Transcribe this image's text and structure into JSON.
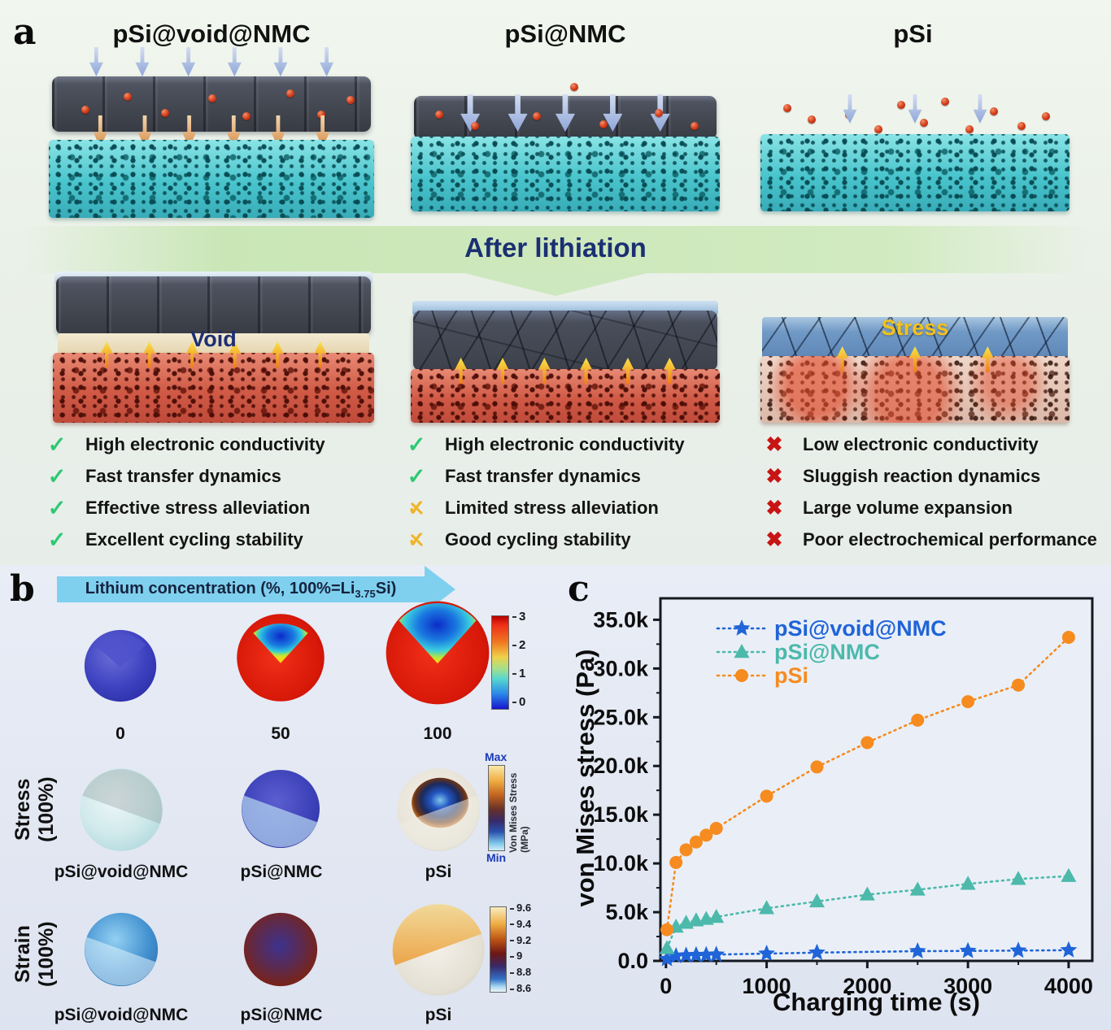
{
  "panel_a": {
    "label": "a",
    "after_lithiation": "After lithiation",
    "columns": [
      {
        "title": "pSi@void@NMC",
        "overlay_label": "Void",
        "items": [
          {
            "icon": "check",
            "text": "High electronic conductivity"
          },
          {
            "icon": "check",
            "text": "Fast transfer dynamics"
          },
          {
            "icon": "check",
            "text": "Effective stress alleviation"
          },
          {
            "icon": "check",
            "text": "Excellent cycling stability"
          }
        ]
      },
      {
        "title": "pSi@NMC",
        "overlay_label": "",
        "items": [
          {
            "icon": "check",
            "text": "High electronic conductivity"
          },
          {
            "icon": "check",
            "text": "Fast  transfer dynamics"
          },
          {
            "icon": "partial",
            "text": "Limited stress alleviation"
          },
          {
            "icon": "partial",
            "text": "Good cycling stability"
          }
        ]
      },
      {
        "title": "pSi",
        "overlay_label": "Stress",
        "items": [
          {
            "icon": "cross",
            "text": "Low electronic conductivity"
          },
          {
            "icon": "cross",
            "text": "Sluggish reaction dynamics"
          },
          {
            "icon": "cross",
            "text": "Large volume expansion"
          },
          {
            "icon": "cross",
            "text": "Poor electrochemical performance"
          }
        ]
      }
    ]
  },
  "panel_b": {
    "label": "b",
    "arrow_text_pre": "Lithium concentration (%, 100%=Li",
    "arrow_text_sub": "3.75",
    "arrow_text_post": "Si)",
    "concentration_labels": [
      "0",
      "50",
      "100"
    ],
    "concentration_colorbar_ticks": [
      "3",
      "2",
      "1",
      "0"
    ],
    "stress_row_label": "Stress (100%)",
    "strain_row_label": "Strain (100%)",
    "sphere_labels": [
      "pSi@void@NMC",
      "pSi@NMC",
      "pSi"
    ],
    "stress_colorbar": {
      "max": "Max",
      "min": "Min",
      "label": "Von Mises Stress (MPa)"
    },
    "strain_colorbar_ticks": [
      "9.6",
      "9.4",
      "9.2",
      "9",
      "8.8",
      "8.6"
    ]
  },
  "panel_c": {
    "label": "c"
  },
  "colors": {
    "check_green": "#2ec873",
    "partial_yellow": "#f0b429",
    "cross_red": "#c81414",
    "series_blue": "#1f64d8",
    "series_teal": "#4cb9ab",
    "series_orange": "#f68b1f",
    "after_lithiation_text": "#1b2f72",
    "stress_overlay_text": "#f2c21c"
  },
  "chart_data": {
    "type": "line",
    "title": "",
    "xlabel": "Charging time (s)",
    "ylabel": "von Mises stress (Pa)",
    "xlim": [
      -55,
      4235
    ],
    "ylim": [
      0,
      37200
    ],
    "xticks": [
      0,
      1000,
      2000,
      3000,
      4000
    ],
    "yticks": [
      0,
      5000,
      10000,
      15000,
      20000,
      25000,
      30000,
      35000
    ],
    "ytick_labels": [
      "0.0",
      "5.0k",
      "10.0k",
      "15.0k",
      "20.0k",
      "25.0k",
      "30.0k",
      "35.0k"
    ],
    "grid": false,
    "legend_position": "top-left-inside",
    "line_style": "dotted",
    "series": [
      {
        "name": "pSi@void@NMC",
        "color": "#1f64d8",
        "marker": "star",
        "x": [
          10,
          100,
          200,
          300,
          400,
          500,
          1000,
          1500,
          2500,
          3000,
          3500,
          4000
        ],
        "y": [
          200,
          500,
          560,
          600,
          620,
          650,
          750,
          850,
          1000,
          1030,
          1060,
          1100
        ]
      },
      {
        "name": "pSi@NMC",
        "color": "#4cb9ab",
        "marker": "triangle",
        "x": [
          10,
          100,
          200,
          300,
          400,
          500,
          1000,
          1500,
          2000,
          2500,
          3000,
          3500,
          4000
        ],
        "y": [
          1300,
          3500,
          3900,
          4150,
          4300,
          4500,
          5400,
          6100,
          6800,
          7300,
          7900,
          8400,
          8700
        ]
      },
      {
        "name": "pSi",
        "color": "#f68b1f",
        "marker": "circle",
        "x": [
          10,
          100,
          200,
          300,
          400,
          500,
          1000,
          1500,
          2000,
          2500,
          3000,
          3500,
          4000
        ],
        "y": [
          3200,
          10100,
          11400,
          12200,
          12900,
          13600,
          16900,
          19900,
          22400,
          24700,
          26600,
          28300,
          33200
        ]
      }
    ]
  }
}
